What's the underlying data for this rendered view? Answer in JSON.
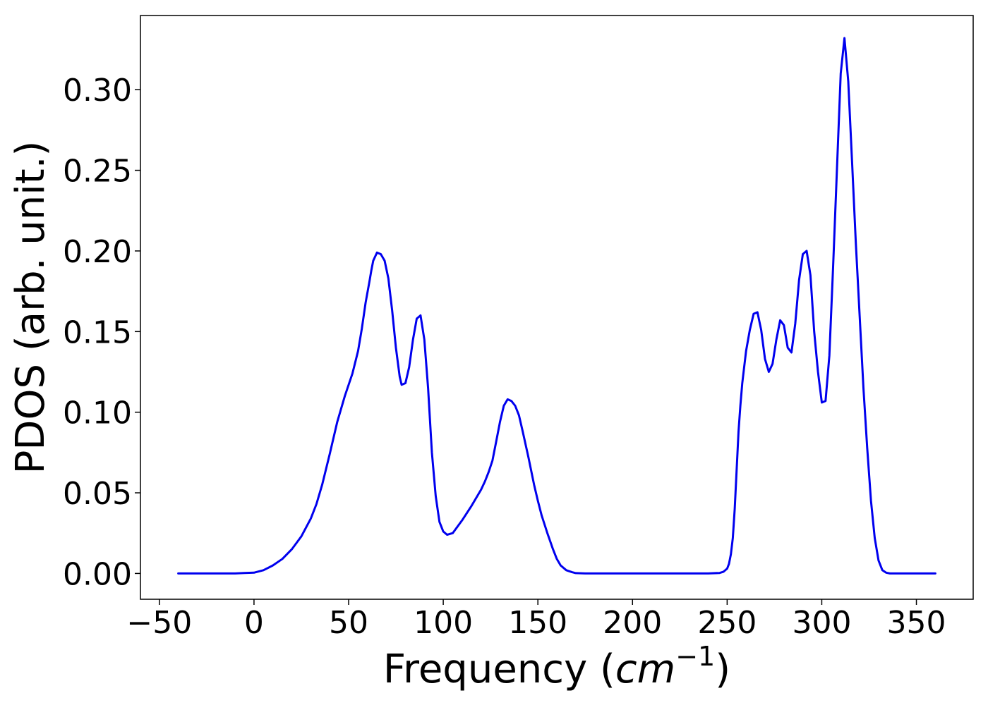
{
  "chart_data": {
    "type": "line",
    "title": "",
    "xlabel": "Frequency (",
    "xlabel_unit": "cm",
    "xlabel_exponent": "−1",
    "xlabel_close": ")",
    "ylabel": "PDOS (arb. unit.)",
    "xlim": [
      -60,
      380
    ],
    "ylim": [
      -0.016,
      0.346
    ],
    "grid": false,
    "legend": "none",
    "x_ticks": [
      -50,
      0,
      50,
      100,
      150,
      200,
      250,
      300,
      350
    ],
    "x_tick_labels": [
      "−50",
      "0",
      "50",
      "100",
      "150",
      "200",
      "250",
      "300",
      "350"
    ],
    "y_ticks": [
      0.0,
      0.05,
      0.1,
      0.15,
      0.2,
      0.25,
      0.3
    ],
    "y_tick_labels": [
      "0.00",
      "0.05",
      "0.10",
      "0.15",
      "0.20",
      "0.25",
      "0.30"
    ],
    "line_color": "#0000ee",
    "series": [
      {
        "x": [
          -40,
          -30,
          -20,
          -10,
          -5,
          0,
          5,
          10,
          15,
          20,
          25,
          30,
          33,
          36,
          40,
          44,
          48,
          50,
          52,
          55,
          57,
          59,
          61,
          62,
          63,
          65,
          67,
          69,
          71,
          73,
          75,
          77,
          78,
          80,
          82,
          84,
          86,
          88,
          90,
          92,
          94,
          96,
          98,
          100,
          102,
          105,
          110,
          115,
          120,
          122,
          124,
          126,
          128,
          130,
          132,
          134,
          136,
          138,
          140,
          142,
          145,
          148,
          150,
          152,
          155,
          158,
          160,
          162,
          165,
          168,
          170,
          175,
          200,
          240,
          246,
          248,
          250,
          251,
          252,
          253,
          254,
          255,
          256,
          257,
          258,
          259,
          260,
          262,
          264,
          266,
          268,
          270,
          272,
          274,
          276,
          278,
          280,
          282,
          284,
          286,
          288,
          290,
          292,
          294,
          296,
          298,
          300,
          302,
          304,
          306,
          308,
          310,
          312,
          314,
          316,
          318,
          320,
          322,
          324,
          326,
          328,
          330,
          332,
          334,
          336,
          340,
          360
        ],
        "values": [
          0.0,
          0.0,
          0.0,
          0.0,
          0.0003,
          0.0005,
          0.002,
          0.005,
          0.009,
          0.015,
          0.023,
          0.034,
          0.043,
          0.055,
          0.074,
          0.094,
          0.11,
          0.117,
          0.124,
          0.138,
          0.152,
          0.168,
          0.181,
          0.188,
          0.194,
          0.199,
          0.198,
          0.194,
          0.183,
          0.163,
          0.14,
          0.122,
          0.117,
          0.118,
          0.128,
          0.145,
          0.158,
          0.16,
          0.145,
          0.115,
          0.075,
          0.048,
          0.032,
          0.026,
          0.024,
          0.025,
          0.033,
          0.042,
          0.052,
          0.057,
          0.063,
          0.07,
          0.082,
          0.094,
          0.104,
          0.108,
          0.107,
          0.104,
          0.098,
          0.088,
          0.072,
          0.055,
          0.045,
          0.036,
          0.025,
          0.015,
          0.009,
          0.005,
          0.002,
          0.0008,
          0.0002,
          0.0,
          0.0,
          0.0,
          0.0003,
          0.001,
          0.003,
          0.006,
          0.012,
          0.022,
          0.04,
          0.064,
          0.088,
          0.104,
          0.118,
          0.128,
          0.138,
          0.151,
          0.161,
          0.162,
          0.151,
          0.133,
          0.125,
          0.13,
          0.145,
          0.157,
          0.154,
          0.14,
          0.137,
          0.155,
          0.182,
          0.198,
          0.2,
          0.185,
          0.15,
          0.125,
          0.106,
          0.107,
          0.135,
          0.19,
          0.25,
          0.31,
          0.332,
          0.305,
          0.255,
          0.205,
          0.16,
          0.115,
          0.078,
          0.045,
          0.022,
          0.008,
          0.002,
          0.0005,
          0.0,
          0.0,
          0.0
        ]
      }
    ]
  }
}
